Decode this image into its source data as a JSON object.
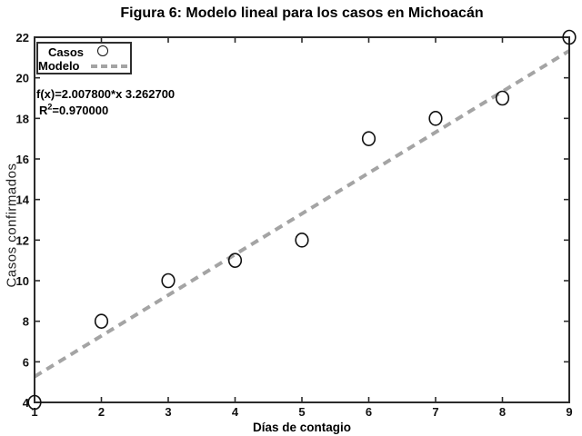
{
  "chart_data": {
    "type": "scatter",
    "title": "Figura 6: Modelo lineal para los casos en Michoacán",
    "xlabel": "Días de contagio",
    "ylabel": "Casos confirmados",
    "xlim": [
      1,
      9
    ],
    "ylim": [
      4,
      22
    ],
    "xticks": [
      1,
      2,
      3,
      4,
      5,
      6,
      7,
      8,
      9
    ],
    "yticks": [
      4,
      6,
      8,
      10,
      12,
      14,
      16,
      18,
      20,
      22
    ],
    "grid": false,
    "legend": {
      "position": "top-left-inside",
      "entries": [
        {
          "label": "Casos",
          "marker": "open-circle"
        },
        {
          "label": "Modelo",
          "marker": "dashed-line"
        }
      ]
    },
    "series": [
      {
        "name": "Casos",
        "type": "scatter",
        "marker": "open-circle",
        "color": "#111111",
        "x": [
          1,
          2,
          3,
          4,
          5,
          6,
          7,
          8,
          9
        ],
        "y": [
          4,
          8,
          10,
          11,
          12,
          17,
          18,
          19,
          22
        ]
      },
      {
        "name": "Modelo",
        "type": "line",
        "style": "dashed",
        "color": "#a4a4a4",
        "slope": 2.0078,
        "intercept": 3.2627,
        "x": [
          1,
          9
        ],
        "y": [
          5.2705,
          21.3329
        ]
      }
    ],
    "model": {
      "equation": "f(x)=2.007800*x 3.262700",
      "r2_base": "R",
      "r2_sup": "2",
      "r2_rest": "=0.970000",
      "r_squared": 0.97
    },
    "colors": {
      "axis": "#2b2b2b",
      "tick_label": "#111111",
      "model_line": "#a4a4a4",
      "marker_edge": "#111111",
      "background": "#ffffff"
    }
  }
}
